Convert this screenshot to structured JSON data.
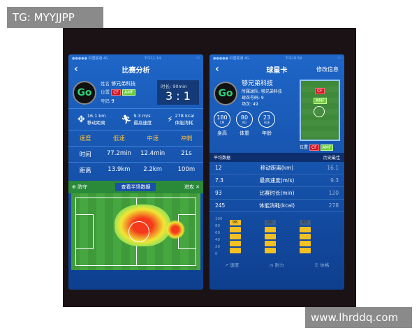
{
  "watermarks": {
    "top": "TG: MYYJJPP",
    "bottom": "www.lhrddq.com"
  },
  "left": {
    "status": {
      "carrier": "●●●●● 中国联通 4G",
      "time": "下午11:14"
    },
    "title": "比赛分析",
    "name_label": "姓名",
    "name": "够兄弟科技",
    "pos_label": "位置",
    "pos1": "CF",
    "pos2": "AMF",
    "num_label": "号码",
    "num": "9",
    "duration": "时长: 90min",
    "score": "3 : 1",
    "stats": [
      {
        "value": "16.1 km",
        "label": "移动距离",
        "icon": "move-icon"
      },
      {
        "value": "9.3 m/s",
        "label": "最高速度",
        "icon": "runner-icon"
      },
      {
        "value": "278 kcal",
        "label": "体能消耗",
        "icon": "lightning-icon"
      }
    ],
    "table": {
      "headers": [
        "速度",
        "低速",
        "中速",
        "冲刺"
      ],
      "rows": [
        [
          "时间",
          "77.2min",
          "12.4min",
          "21s"
        ],
        [
          "距离",
          "13.9km",
          "2.2km",
          "100m"
        ]
      ]
    },
    "heatmap": {
      "defend": "防守",
      "title": "查看半场数据",
      "attack": "进攻"
    }
  },
  "right": {
    "status": {
      "carrier": "●●●●● 中国联通 4G",
      "time": "下午10:59"
    },
    "title": "球星卡",
    "edit": "修改信息",
    "name": "够兄弟科技",
    "team": "所属球队: 够兄弟科技",
    "jersey": "球衣号码: 9",
    "matches": "场次: 49",
    "body": [
      {
        "value": "180",
        "unit": "CM",
        "label": "身高"
      },
      {
        "value": "80",
        "unit": "KG",
        "label": "体重"
      },
      {
        "value": "23",
        "unit": "AGE",
        "label": "年龄"
      }
    ],
    "pos_label": "位置",
    "pos1": "CF",
    "pos2": "AMF",
    "avg_label": "平均数据",
    "best_label": "历史最佳",
    "records": [
      {
        "avg": "12",
        "name": "移动距离(km)",
        "best": "16.1"
      },
      {
        "avg": "7.3",
        "name": "最高速度(m/s)",
        "best": "9.3"
      },
      {
        "avg": "93",
        "name": "比赛时长(min)",
        "best": "120"
      },
      {
        "avg": "245",
        "name": "体能消耗(kcal)",
        "best": "278"
      }
    ],
    "yticks": [
      "100",
      "80",
      "60",
      "40",
      "20",
      "0"
    ],
    "bars": [
      {
        "value": 98,
        "label": "98",
        "name": "速度"
      },
      {
        "value": 89,
        "label": "89",
        "name": "耐力"
      },
      {
        "value": 83,
        "label": "83",
        "name": "体格"
      }
    ]
  }
}
